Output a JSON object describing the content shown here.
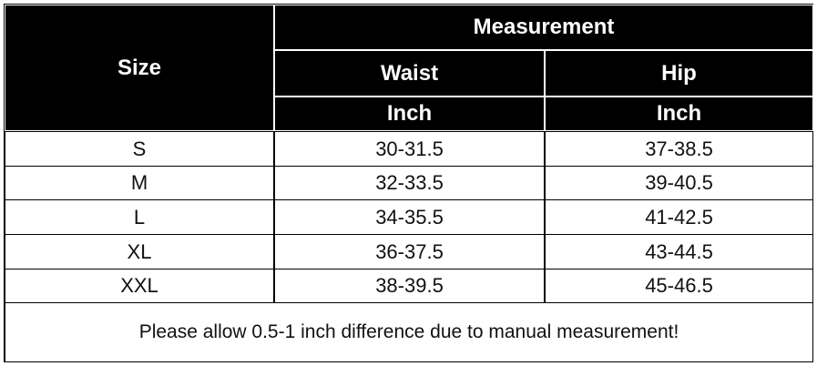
{
  "table": {
    "header": {
      "size": "Size",
      "measurement": "Measurement",
      "columns": [
        "Waist",
        "Hip"
      ],
      "units": [
        "Inch",
        "Inch"
      ]
    },
    "rows": [
      [
        "S",
        "30-31.5",
        "37-38.5"
      ],
      [
        "M",
        "32-33.5",
        "39-40.5"
      ],
      [
        "L",
        "34-35.5",
        "41-42.5"
      ],
      [
        "XL",
        "36-37.5",
        "43-44.5"
      ],
      [
        "XXL",
        "38-39.5",
        "45-46.5"
      ]
    ],
    "note": "Please allow 0.5-1 inch difference due to manual measurement!"
  }
}
